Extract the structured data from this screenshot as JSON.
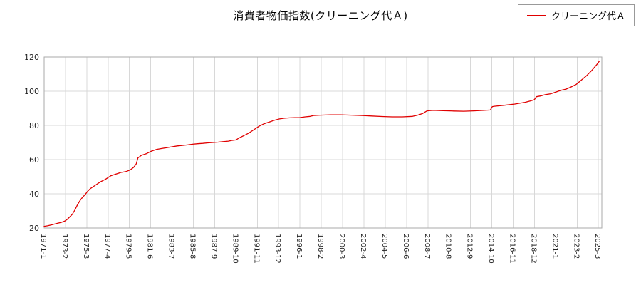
{
  "header": {
    "title": "消費者物価指数(クリーニング代Ａ)"
  },
  "legend": {
    "label": "クリーニング代Ａ",
    "line_color": "#e00000"
  },
  "chart_data": {
    "type": "line",
    "title": "消費者物価指数(クリーニング代Ａ)",
    "grid": true,
    "legend_position": "top-right",
    "background": "#ffffff",
    "grid_color": "#d8d8d8",
    "frame_color": "#aaaaaa",
    "ylim": [
      20,
      120
    ],
    "y_ticks": [
      20,
      40,
      60,
      80,
      100,
      120
    ],
    "xlim": [
      1971.0,
      2025.5
    ],
    "x_tick_labels": [
      "1971-1",
      "1973-2",
      "1975-3",
      "1977-4",
      "1979-5",
      "1981-6",
      "1983-7",
      "1985-8",
      "1987-9",
      "1989-10",
      "1991-11",
      "1993-12",
      "1996-1",
      "1998-2",
      "2000-3",
      "2002-4",
      "2004-5",
      "2006-6",
      "2008-7",
      "2010-8",
      "2012-9",
      "2014-10",
      "2016-11",
      "2018-12",
      "2021-1",
      "2023-2",
      "2025-3"
    ],
    "series": [
      {
        "name": "クリーニング代Ａ",
        "color": "#e00000",
        "x": [
          1971.0,
          1971.33,
          1971.67,
          1972.0,
          1972.33,
          1972.67,
          1973.0,
          1973.25,
          1973.5,
          1973.75,
          1974.0,
          1974.25,
          1974.5,
          1974.75,
          1975.0,
          1975.25,
          1975.5,
          1976.0,
          1976.5,
          1977.0,
          1977.5,
          1978.0,
          1978.5,
          1979.0,
          1979.42,
          1979.75,
          1980.0,
          1980.17,
          1980.5,
          1981.0,
          1981.5,
          1982.0,
          1982.5,
          1983.0,
          1983.5,
          1984.0,
          1984.5,
          1985.0,
          1985.5,
          1986.0,
          1986.5,
          1987.0,
          1987.5,
          1988.0,
          1988.5,
          1989.0,
          1989.33,
          1989.75,
          1990.0,
          1990.5,
          1991.0,
          1991.5,
          1992.0,
          1992.5,
          1993.0,
          1993.5,
          1994.0,
          1994.5,
          1995.0,
          1995.5,
          1996.0,
          1996.5,
          1997.0,
          1997.33,
          1998.0,
          1999.0,
          2000.0,
          2001.0,
          2002.0,
          2003.0,
          2004.0,
          2005.0,
          2006.0,
          2007.0,
          2007.5,
          2008.0,
          2008.42,
          2009.0,
          2010.0,
          2011.0,
          2012.0,
          2013.0,
          2014.0,
          2014.6,
          2014.8,
          2015.0,
          2016.0,
          2017.0,
          2018.0,
          2018.5,
          2018.9,
          2019.1,
          2019.5,
          2020.0,
          2020.5,
          2021.0,
          2021.5,
          2022.0,
          2022.5,
          2023.0,
          2023.5,
          2024.0,
          2024.5,
          2025.0,
          2025.25
        ],
        "y": [
          21.0,
          21.3,
          21.8,
          22.3,
          22.8,
          23.3,
          24.0,
          25.0,
          26.5,
          28.0,
          30.5,
          33.5,
          36.0,
          38.0,
          39.5,
          41.5,
          43.0,
          45.0,
          47.0,
          48.5,
          50.5,
          51.5,
          52.5,
          53.0,
          54.0,
          55.5,
          57.5,
          61.0,
          62.5,
          63.5,
          65.0,
          66.0,
          66.5,
          67.0,
          67.5,
          68.0,
          68.3,
          68.6,
          69.0,
          69.3,
          69.5,
          69.8,
          70.0,
          70.2,
          70.5,
          70.8,
          71.2,
          71.5,
          72.5,
          74.0,
          75.5,
          77.5,
          79.5,
          81.0,
          82.0,
          83.0,
          83.8,
          84.2,
          84.4,
          84.5,
          84.6,
          85.0,
          85.3,
          85.8,
          86.0,
          86.2,
          86.2,
          86.0,
          85.8,
          85.5,
          85.2,
          85.0,
          85.0,
          85.3,
          86.0,
          87.0,
          88.5,
          88.8,
          88.6,
          88.4,
          88.3,
          88.5,
          88.8,
          89.0,
          91.0,
          91.2,
          91.8,
          92.5,
          93.5,
          94.3,
          95.0,
          96.8,
          97.2,
          98.0,
          98.5,
          99.5,
          100.5,
          101.2,
          102.5,
          104.0,
          106.5,
          109.0,
          112.0,
          115.5,
          117.5
        ]
      }
    ]
  }
}
